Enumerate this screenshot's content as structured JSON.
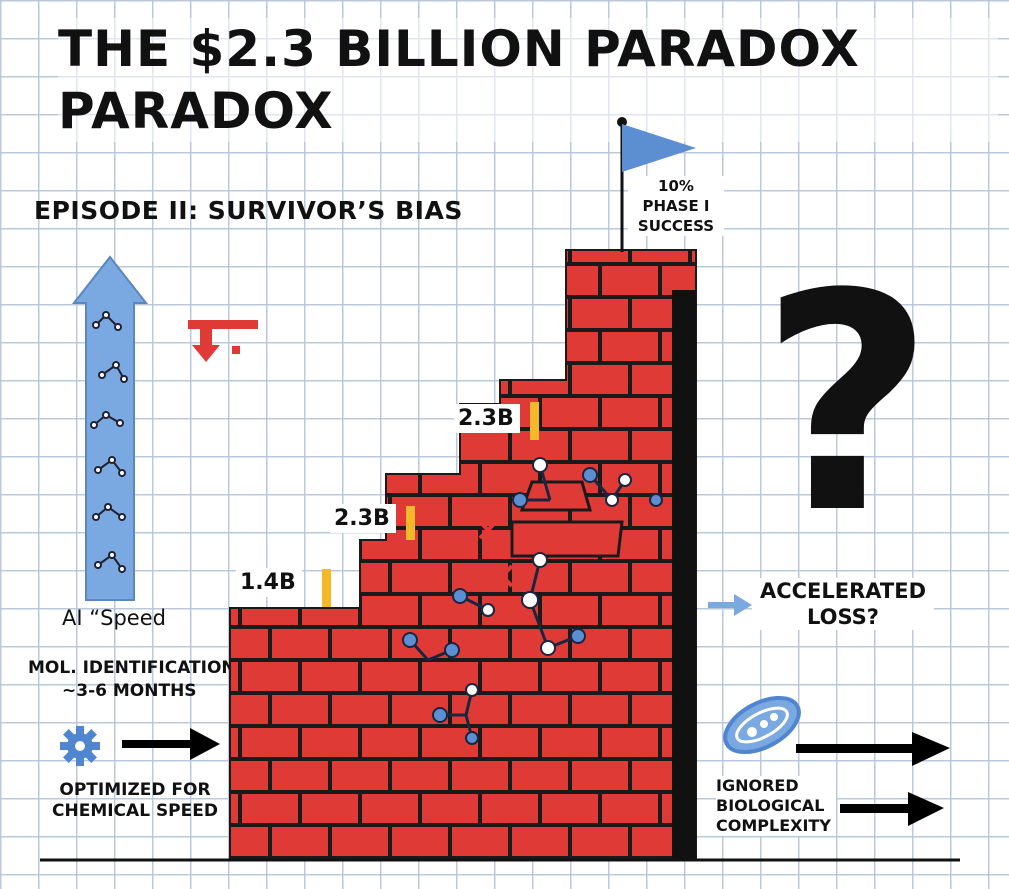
{
  "title": "THE $2.3 BILLION PARADOX PARADOX",
  "subtitle": "EPISODE II: SURVIVOR’S BIAS",
  "flag_label": "10%\nPHASE I\nSUCCESS",
  "flag_label_lines": [
    "10%",
    "PHASE I",
    "SUCCESS"
  ],
  "steps": [
    "1.4B",
    "2.3B",
    "2.3B"
  ],
  "ai_speed_label": "AI “Speed",
  "mol_id_label": "MOL. IDENTIFICATION:",
  "mol_id_value": "~3-6 MONTHS",
  "optimized_line1": "OPTIMIZED FOR",
  "optimized_line2": "CHEMICAL SPEED",
  "accelerated_line1": "ACCELERATED",
  "accelerated_line2": "LOSS?",
  "ignored_line1": "IGNORED",
  "ignored_line2": "BIOLOGICAL",
  "ignored_line3": "COMPLEXITY",
  "question_mark": "?",
  "colors": {
    "brick": "#e03a36",
    "mortar": "#1a1a1a",
    "flag": "#5b8fd2",
    "ai_arrow": "#7aa8e0",
    "accent": "#f5b829",
    "grid": "#b9c8dc"
  },
  "icons": [
    "gear-icon",
    "cell-icon",
    "flag-icon",
    "down-arrow-icon",
    "molecule-icon",
    "x-mark-icon"
  ]
}
